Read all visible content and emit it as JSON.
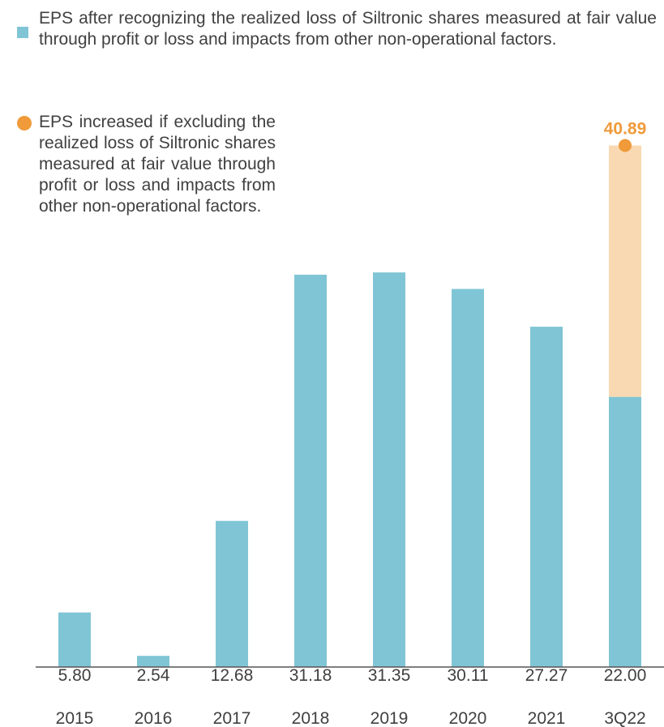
{
  "chart_data": {
    "type": "stacked_bar",
    "categories": [
      "2015",
      "2016",
      "2017",
      "2018",
      "2019",
      "2020",
      "2021",
      "3Q22"
    ],
    "series": [
      {
        "name": "EPS after recognizing the realized loss of Siltronic shares measured at fair value through profit or loss and impacts from other non-operational factors.",
        "color": "#80c5d5",
        "values": [
          5.8,
          2.54,
          12.68,
          31.18,
          31.35,
          30.11,
          27.27,
          22.0
        ],
        "value_labels": [
          "5.80",
          "2.54",
          "12.68",
          "31.18",
          "31.35",
          "30.11",
          "27.27",
          "22.00"
        ]
      },
      {
        "name": "EPS increased if excluding the realized loss of Siltronic shares measured at fair value through profit or loss and impacts from other non-operational factors.",
        "color": "#f9d9b1",
        "values": [
          null,
          null,
          null,
          null,
          null,
          null,
          null,
          18.89
        ]
      }
    ],
    "total": 40.89,
    "total_color": "#f09a3a",
    "ylim": [
      1.7,
      45
    ]
  }
}
